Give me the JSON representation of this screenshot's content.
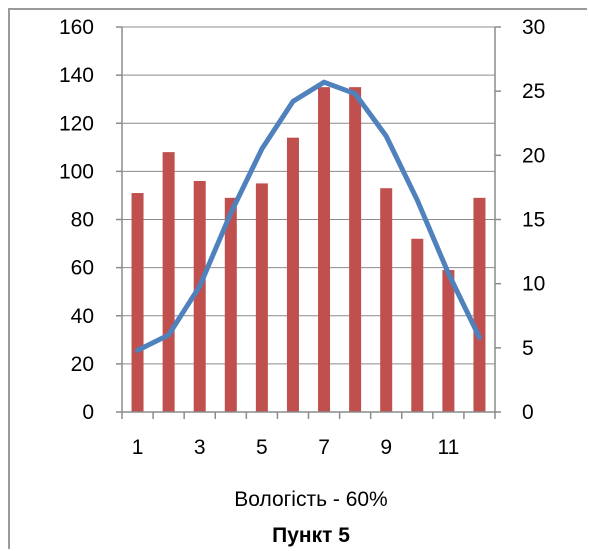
{
  "chart_data": {
    "type": "bar",
    "categories": [
      1,
      2,
      3,
      4,
      5,
      6,
      7,
      8,
      9,
      10,
      11,
      12
    ],
    "x_tick_labels": [
      "1",
      "3",
      "5",
      "7",
      "9",
      "11"
    ],
    "series": [
      {
        "type": "bar",
        "axis": "left",
        "color": "#c0504d",
        "values": [
          91,
          108,
          96,
          89,
          95,
          114,
          135,
          135,
          93,
          72,
          59,
          89
        ]
      },
      {
        "type": "line",
        "axis": "right",
        "color": "#4f81bd",
        "values": [
          4.8,
          6.0,
          9.8,
          15.5,
          20.5,
          24.2,
          25.7,
          24.8,
          21.5,
          16.5,
          10.8,
          5.8
        ]
      }
    ],
    "y_left": {
      "range": [
        0,
        160
      ],
      "ticks": [
        0,
        20,
        40,
        60,
        80,
        100,
        120,
        140,
        160
      ],
      "tick_labels": [
        "0",
        "20",
        "40",
        "60",
        "80",
        "100",
        "120",
        "140",
        "160"
      ]
    },
    "y_right": {
      "range": [
        0,
        30
      ],
      "ticks": [
        0,
        5,
        10,
        15,
        20,
        25,
        30
      ],
      "tick_labels": [
        "0",
        "5",
        "10",
        "15",
        "20",
        "25",
        "30"
      ]
    },
    "xlabel": "Вологість - 60%",
    "title": "Пункт 5",
    "grid": true,
    "legend": "none"
  }
}
